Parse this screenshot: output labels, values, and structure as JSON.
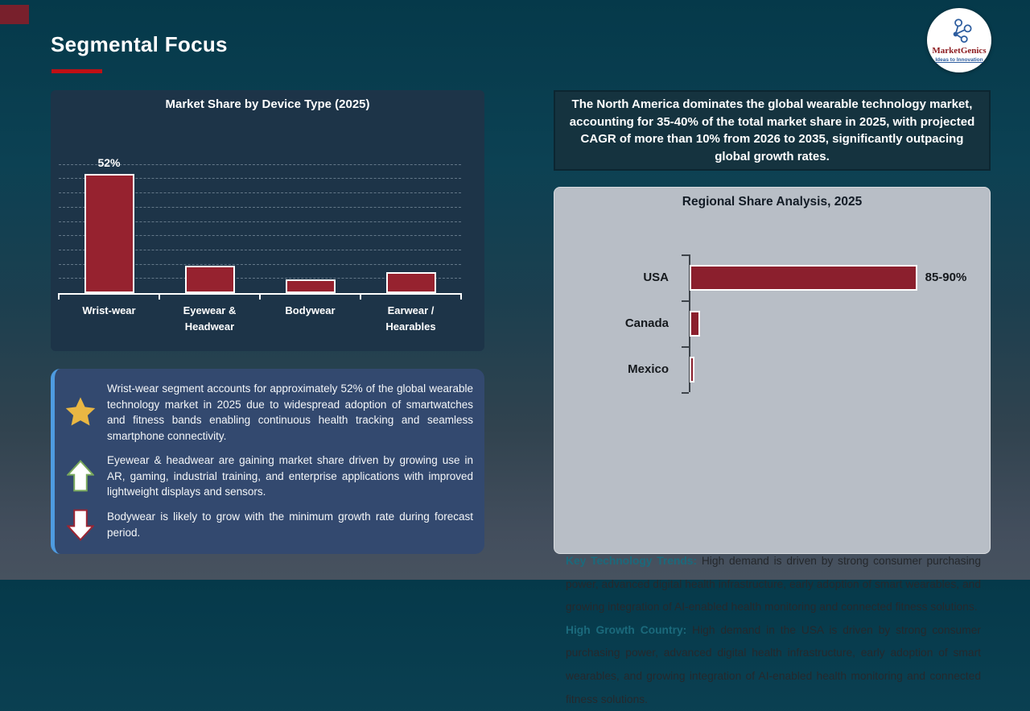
{
  "slide": {
    "title": "Segmental Focus"
  },
  "logo": {
    "name": "MarketGenics",
    "tagline": "Ideas to Innovation",
    "icon": "molecule-icon"
  },
  "colors": {
    "bar_maroon_left": "#96222f",
    "bar_maroon_right": "#8b1f2d",
    "accent_red": "#c01015",
    "accent_blue": "#4e9be0",
    "teal_lead": "#1b6a7c",
    "gold_star": "#eab743",
    "panel_gray": "#b8bec6",
    "panel_navy": "#1d3448",
    "box_blue": "#33496f"
  },
  "chart_data": [
    {
      "type": "bar",
      "title": "Market Share by Device Type (2025)",
      "categories": [
        "Wrist-wear",
        "Eyewear & Headwear",
        "Bodywear",
        "Earwear / Hearables"
      ],
      "values": [
        52,
        12,
        6,
        9
      ],
      "data_labels": [
        "52%",
        "",
        "",
        ""
      ],
      "unit": "%",
      "ylim": [
        0,
        60
      ],
      "grid": "dashed-horizontal",
      "legend": "none",
      "bar_color": "#96222f"
    },
    {
      "type": "bar-horizontal",
      "title": "Regional Share Analysis, 2025",
      "categories": [
        "USA",
        "Canada",
        "Mexico"
      ],
      "values": [
        87.5,
        4,
        2
      ],
      "data_labels": [
        "85-90%",
        "",
        ""
      ],
      "unit": "%",
      "xlim": [
        0,
        100
      ],
      "grid": "off",
      "legend": "none",
      "bar_color": "#8b1f2d"
    }
  ],
  "insight_box": {
    "items": [
      {
        "icon": "star-icon",
        "text": "Wrist-wear segment accounts for approximately 52% of the global wearable technology market in 2025 due to widespread adoption of smartwatches and fitness bands enabling continuous health tracking and seamless smartphone connectivity."
      },
      {
        "icon": "arrow-up-icon",
        "text": "Eyewear & headwear are gaining market share driven by growing use in AR, gaming, industrial training, and enterprise applications with improved lightweight displays and sensors."
      },
      {
        "icon": "arrow-down-icon",
        "text": "Bodywear is likely to grow with the minimum growth rate during forecast period."
      }
    ]
  },
  "na_box": {
    "text": "The North America dominates the global wearable technology market, accounting for 35-40% of the total market share in 2025, with projected CAGR of more than 10% from 2026 to 2035, significantly outpacing global growth rates."
  },
  "regional_panel": {
    "title": "Regional Share Analysis, 2025",
    "paragraphs": [
      {
        "lead": "Key Technology Trends:",
        "text": " High demand is driven by strong consumer purchasing power, advanced digital health infrastructure, early adoption of smart wearables, and growing integration of AI-enabled health monitoring and connected fitness solutions."
      },
      {
        "lead": "High Growth Country:",
        "text": " High demand in the USA is driven by strong consumer purchasing power, advanced digital health infrastructure, early adoption of smart wearables, and growing integration of AI-enabled health monitoring and connected fitness solutions."
      }
    ]
  }
}
